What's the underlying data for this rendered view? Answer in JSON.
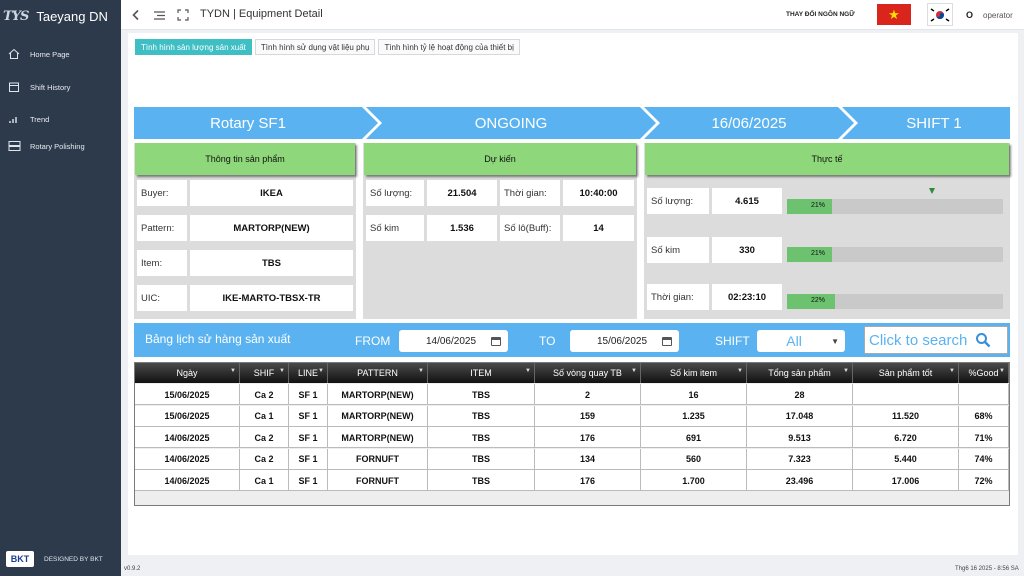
{
  "sidebar": {
    "logo_mark": "TYS",
    "app_name": "Taeyang DN",
    "items": [
      {
        "label": "Home Page",
        "icon": "home-icon"
      },
      {
        "label": "Shift History",
        "icon": "calendar-icon"
      },
      {
        "label": "Trend",
        "icon": "bar-chart-icon"
      },
      {
        "label": "Rotary Polishing",
        "icon": "server-icon"
      }
    ],
    "brand_logo": "BKT",
    "designed_by": "DESIGNED BY BKT"
  },
  "header": {
    "title": "TYDN | Equipment Detail",
    "language_label": "THAY ĐỔI NGÔN NGỮ",
    "user_initial": "O",
    "user_name": "operator"
  },
  "tabs": [
    {
      "label": "Tình hình sản lượng sản xuất",
      "active": true
    },
    {
      "label": "Tình hình sử dụng vật liệu phụ",
      "active": false
    },
    {
      "label": "Tình hình tỷ lệ hoạt động của thiết bị",
      "active": false
    }
  ],
  "status_bar": {
    "machine": "Rotary SF1",
    "status": "ONGOING",
    "date": "16/06/2025",
    "shift": "SHIFT 1",
    "color": "#5ab3f0"
  },
  "product_info": {
    "title": "Thông tin sản phẩm",
    "rows": [
      {
        "label": "Buyer:",
        "value": "IKEA"
      },
      {
        "label": "Pattern:",
        "value": "MARTORP(NEW)"
      },
      {
        "label": "Item:",
        "value": "TBS"
      },
      {
        "label": "UIC:",
        "value": "IKE-MARTO-TBSX-TR"
      }
    ]
  },
  "plan": {
    "title": "Dự kiến",
    "quantity_label": "Số lượng:",
    "quantity": "21.504",
    "time_label": "Thời gian:",
    "time": "10:40:00",
    "needles_label": "Số kim",
    "needles": "1.536",
    "lots_label": "Số lô(Buff):",
    "lots": "14"
  },
  "actual": {
    "title": "Thực tế",
    "rows": [
      {
        "label": "Số lượng:",
        "value": "4.615",
        "progress": 0.21,
        "progress_text": "21%"
      },
      {
        "label": "Số kim",
        "value": "330",
        "progress": 0.21,
        "progress_text": "21%"
      },
      {
        "label": "Thời gian:",
        "value": "02:23:10",
        "progress": 0.22,
        "progress_text": "22%"
      }
    ]
  },
  "history": {
    "title": "Bảng lịch sử hàng sản xuất",
    "from_label": "FROM",
    "from_date": "14/06/2025",
    "to_label": "TO",
    "to_date": "15/06/2025",
    "shift_label": "SHIFT",
    "shift_value": "All",
    "search_label": "Click to search",
    "columns": [
      "Ngày",
      "SHIF",
      "LINE",
      "PATTERN",
      "ITEM",
      "Số vòng quay TB",
      "Số kim item",
      "Tổng sản phẩm",
      "Sản phẩm tốt",
      "%Good"
    ],
    "rows": [
      [
        "15/06/2025",
        "Ca 2",
        "SF 1",
        "MARTORP(NEW)",
        "TBS",
        "2",
        "16",
        "28",
        "",
        ""
      ],
      [
        "15/06/2025",
        "Ca 1",
        "SF 1",
        "MARTORP(NEW)",
        "TBS",
        "159",
        "1.235",
        "17.048",
        "11.520",
        "68%"
      ],
      [
        "14/06/2025",
        "Ca 2",
        "SF 1",
        "MARTORP(NEW)",
        "TBS",
        "176",
        "691",
        "9.513",
        "6.720",
        "71%"
      ],
      [
        "14/06/2025",
        "Ca 2",
        "SF 1",
        "FORNUFT",
        "TBS",
        "134",
        "560",
        "7.323",
        "5.440",
        "74%"
      ],
      [
        "14/06/2025",
        "Ca 1",
        "SF 1",
        "FORNUFT",
        "TBS",
        "176",
        "1.700",
        "23.496",
        "17.006",
        "72%"
      ]
    ]
  },
  "footer": {
    "version": "v0.9.2",
    "datetime": "Thg6 16 2025 - 8:56 SA"
  }
}
